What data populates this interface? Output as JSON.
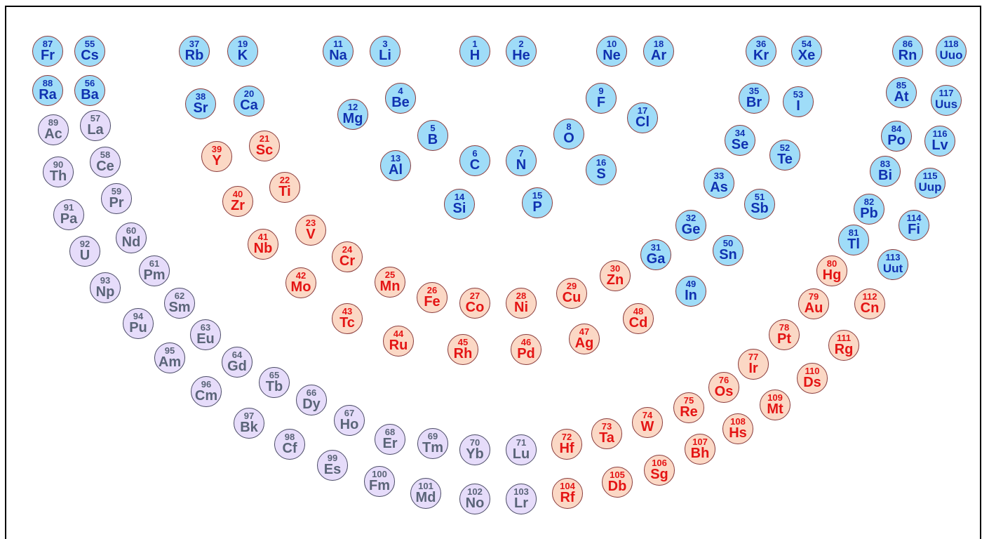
{
  "colors": {
    "cat_a": {
      "fill": "#9fdcf8",
      "text": "#1031b0"
    },
    "cat_b": {
      "fill": "#fbd8c5",
      "text": "#e41414"
    },
    "cat_c": {
      "fill": "#e6dcfa",
      "text": "#5a6478"
    }
  },
  "elements": [
    {
      "n": "87",
      "s": "Fr",
      "c": "a"
    },
    {
      "n": "55",
      "s": "Cs",
      "c": "a"
    },
    {
      "n": "37",
      "s": "Rb",
      "c": "a"
    },
    {
      "n": "19",
      "s": "K",
      "c": "a"
    },
    {
      "n": "11",
      "s": "Na",
      "c": "a"
    },
    {
      "n": "3",
      "s": "Li",
      "c": "a"
    },
    {
      "n": "1",
      "s": "H",
      "c": "a"
    },
    {
      "n": "2",
      "s": "He",
      "c": "a"
    },
    {
      "n": "10",
      "s": "Ne",
      "c": "a"
    },
    {
      "n": "18",
      "s": "Ar",
      "c": "a"
    },
    {
      "n": "36",
      "s": "Kr",
      "c": "a"
    },
    {
      "n": "54",
      "s": "Xe",
      "c": "a"
    },
    {
      "n": "86",
      "s": "Rn",
      "c": "a"
    },
    {
      "n": "118",
      "s": "Uuo",
      "c": "a"
    },
    {
      "n": "88",
      "s": "Ra",
      "c": "a"
    },
    {
      "n": "56",
      "s": "Ba",
      "c": "a"
    },
    {
      "n": "38",
      "s": "Sr",
      "c": "a"
    },
    {
      "n": "20",
      "s": "Ca",
      "c": "a"
    },
    {
      "n": "12",
      "s": "Mg",
      "c": "a"
    },
    {
      "n": "4",
      "s": "Be",
      "c": "a"
    },
    {
      "n": "9",
      "s": "F",
      "c": "a"
    },
    {
      "n": "17",
      "s": "Cl",
      "c": "a"
    },
    {
      "n": "35",
      "s": "Br",
      "c": "a"
    },
    {
      "n": "53",
      "s": "I",
      "c": "a"
    },
    {
      "n": "85",
      "s": "At",
      "c": "a"
    },
    {
      "n": "117",
      "s": "Uus",
      "c": "a"
    },
    {
      "n": "5",
      "s": "B",
      "c": "a"
    },
    {
      "n": "8",
      "s": "O",
      "c": "a"
    },
    {
      "n": "34",
      "s": "Se",
      "c": "a"
    },
    {
      "n": "84",
      "s": "Po",
      "c": "a"
    },
    {
      "n": "116",
      "s": "Lv",
      "c": "a"
    },
    {
      "n": "13",
      "s": "Al",
      "c": "a"
    },
    {
      "n": "6",
      "s": "C",
      "c": "a"
    },
    {
      "n": "7",
      "s": "N",
      "c": "a"
    },
    {
      "n": "16",
      "s": "S",
      "c": "a"
    },
    {
      "n": "52",
      "s": "Te",
      "c": "a"
    },
    {
      "n": "83",
      "s": "Bi",
      "c": "a"
    },
    {
      "n": "33",
      "s": "As",
      "c": "a"
    },
    {
      "n": "115",
      "s": "Uup",
      "c": "a"
    },
    {
      "n": "14",
      "s": "Si",
      "c": "a"
    },
    {
      "n": "15",
      "s": "P",
      "c": "a"
    },
    {
      "n": "51",
      "s": "Sb",
      "c": "a"
    },
    {
      "n": "82",
      "s": "Pb",
      "c": "a"
    },
    {
      "n": "32",
      "s": "Ge",
      "c": "a"
    },
    {
      "n": "114",
      "s": "Fi",
      "c": "a"
    },
    {
      "n": "81",
      "s": "Tl",
      "c": "a"
    },
    {
      "n": "50",
      "s": "Sn",
      "c": "a"
    },
    {
      "n": "31",
      "s": "Ga",
      "c": "a"
    },
    {
      "n": "113",
      "s": "Uut",
      "c": "a"
    },
    {
      "n": "49",
      "s": "In",
      "c": "a"
    },
    {
      "n": "21",
      "s": "Sc",
      "c": "b"
    },
    {
      "n": "39",
      "s": "Y",
      "c": "b"
    },
    {
      "n": "22",
      "s": "Ti",
      "c": "b"
    },
    {
      "n": "40",
      "s": "Zr",
      "c": "b"
    },
    {
      "n": "23",
      "s": "V",
      "c": "b"
    },
    {
      "n": "41",
      "s": "Nb",
      "c": "b"
    },
    {
      "n": "24",
      "s": "Cr",
      "c": "b"
    },
    {
      "n": "42",
      "s": "Mo",
      "c": "b"
    },
    {
      "n": "25",
      "s": "Mn",
      "c": "b"
    },
    {
      "n": "43",
      "s": "Tc",
      "c": "b"
    },
    {
      "n": "26",
      "s": "Fe",
      "c": "b"
    },
    {
      "n": "27",
      "s": "Co",
      "c": "b"
    },
    {
      "n": "28",
      "s": "Ni",
      "c": "b"
    },
    {
      "n": "29",
      "s": "Cu",
      "c": "b"
    },
    {
      "n": "30",
      "s": "Zn",
      "c": "b"
    },
    {
      "n": "44",
      "s": "Ru",
      "c": "b"
    },
    {
      "n": "45",
      "s": "Rh",
      "c": "b"
    },
    {
      "n": "46",
      "s": "Pd",
      "c": "b"
    },
    {
      "n": "47",
      "s": "Ag",
      "c": "b"
    },
    {
      "n": "48",
      "s": "Cd",
      "c": "b"
    },
    {
      "n": "80",
      "s": "Hg",
      "c": "b"
    },
    {
      "n": "79",
      "s": "Au",
      "c": "b"
    },
    {
      "n": "112",
      "s": "Cn",
      "c": "b"
    },
    {
      "n": "78",
      "s": "Pt",
      "c": "b"
    },
    {
      "n": "111",
      "s": "Rg",
      "c": "b"
    },
    {
      "n": "77",
      "s": "Ir",
      "c": "b"
    },
    {
      "n": "110",
      "s": "Ds",
      "c": "b"
    },
    {
      "n": "76",
      "s": "Os",
      "c": "b"
    },
    {
      "n": "109",
      "s": "Mt",
      "c": "b"
    },
    {
      "n": "75",
      "s": "Re",
      "c": "b"
    },
    {
      "n": "108",
      "s": "Hs",
      "c": "b"
    },
    {
      "n": "74",
      "s": "W",
      "c": "b"
    },
    {
      "n": "107",
      "s": "Bh",
      "c": "b"
    },
    {
      "n": "73",
      "s": "Ta",
      "c": "b"
    },
    {
      "n": "72",
      "s": "Hf",
      "c": "b"
    },
    {
      "n": "106",
      "s": "Sg",
      "c": "b"
    },
    {
      "n": "105",
      "s": "Db",
      "c": "b"
    },
    {
      "n": "104",
      "s": "Rf",
      "c": "b"
    },
    {
      "n": "89",
      "s": "Ac",
      "c": "c"
    },
    {
      "n": "57",
      "s": "La",
      "c": "c"
    },
    {
      "n": "90",
      "s": "Th",
      "c": "c"
    },
    {
      "n": "58",
      "s": "Ce",
      "c": "c"
    },
    {
      "n": "91",
      "s": "Pa",
      "c": "c"
    },
    {
      "n": "59",
      "s": "Pr",
      "c": "c"
    },
    {
      "n": "92",
      "s": "U",
      "c": "c"
    },
    {
      "n": "60",
      "s": "Nd",
      "c": "c"
    },
    {
      "n": "93",
      "s": "Np",
      "c": "c"
    },
    {
      "n": "61",
      "s": "Pm",
      "c": "c"
    },
    {
      "n": "94",
      "s": "Pu",
      "c": "c"
    },
    {
      "n": "62",
      "s": "Sm",
      "c": "c"
    },
    {
      "n": "95",
      "s": "Am",
      "c": "c"
    },
    {
      "n": "63",
      "s": "Eu",
      "c": "c"
    },
    {
      "n": "96",
      "s": "Cm",
      "c": "c"
    },
    {
      "n": "64",
      "s": "Gd",
      "c": "c"
    },
    {
      "n": "65",
      "s": "Tb",
      "c": "c"
    },
    {
      "n": "97",
      "s": "Bk",
      "c": "c"
    },
    {
      "n": "66",
      "s": "Dy",
      "c": "c"
    },
    {
      "n": "98",
      "s": "Cf",
      "c": "c"
    },
    {
      "n": "67",
      "s": "Ho",
      "c": "c"
    },
    {
      "n": "99",
      "s": "Es",
      "c": "c"
    },
    {
      "n": "68",
      "s": "Er",
      "c": "c"
    },
    {
      "n": "100",
      "s": "Fm",
      "c": "c"
    },
    {
      "n": "69",
      "s": "Tm",
      "c": "c"
    },
    {
      "n": "101",
      "s": "Md",
      "c": "c"
    },
    {
      "n": "70",
      "s": "Yb",
      "c": "c"
    },
    {
      "n": "102",
      "s": "No",
      "c": "c"
    },
    {
      "n": "71",
      "s": "Lu",
      "c": "c"
    },
    {
      "n": "103",
      "s": "Lr",
      "c": "c"
    }
  ]
}
